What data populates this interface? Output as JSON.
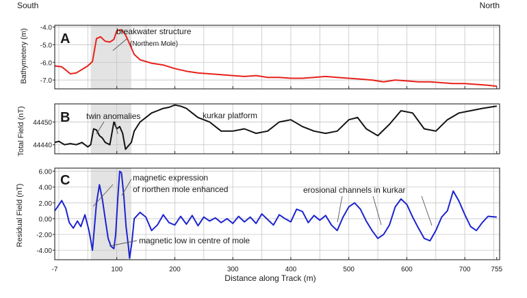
{
  "figure": {
    "label_south": "South",
    "label_north": "North",
    "x_axis_title": "Distance along Track (m)",
    "x_ticks": [
      -7,
      100,
      200,
      300,
      400,
      500,
      600,
      700,
      755
    ],
    "shaded_region_x": [
      55,
      125
    ]
  },
  "chart_data": [
    {
      "type": "line",
      "panel": "A",
      "ylabel": "Bathymetery (m)",
      "ylim": [
        -7.5,
        -3.9
      ],
      "y_ticks": [
        "-4.0",
        "-5.0",
        "-6.0",
        "-7.0"
      ],
      "y_tick_values": [
        -4,
        -5,
        -6,
        -7
      ],
      "color": "#e8201a",
      "grid": true,
      "x": [
        -7,
        5,
        20,
        30,
        40,
        50,
        58,
        65,
        72,
        80,
        88,
        95,
        100,
        108,
        115,
        122,
        130,
        140,
        160,
        180,
        200,
        220,
        240,
        260,
        280,
        300,
        320,
        340,
        360,
        380,
        400,
        420,
        440,
        460,
        480,
        500,
        520,
        540,
        560,
        580,
        600,
        620,
        640,
        660,
        680,
        700,
        720,
        740,
        755
      ],
      "y": [
        -6.2,
        -6.25,
        -6.65,
        -6.6,
        -6.4,
        -6.2,
        -5.95,
        -4.65,
        -4.55,
        -4.8,
        -4.85,
        -4.7,
        -4.2,
        -4.15,
        -4.45,
        -4.95,
        -5.55,
        -5.85,
        -6.05,
        -6.15,
        -6.35,
        -6.5,
        -6.6,
        -6.65,
        -6.7,
        -6.75,
        -6.8,
        -6.75,
        -6.85,
        -6.85,
        -6.9,
        -6.9,
        -6.85,
        -6.8,
        -6.85,
        -6.9,
        -6.95,
        -7.0,
        -7.1,
        -7.0,
        -7.05,
        -7.1,
        -7.1,
        -7.15,
        -7.2,
        -7.2,
        -7.25,
        -7.3,
        -7.35
      ],
      "annotations": [
        "breakwater structure",
        "(Northern Mole)"
      ]
    },
    {
      "type": "line",
      "panel": "B",
      "ylabel": "Total Field (nT)",
      "ylim": [
        44436,
        44458
      ],
      "y_ticks": [
        "44450",
        "44440"
      ],
      "y_tick_values": [
        44450,
        44440
      ],
      "color": "#111111",
      "grid": true,
      "x": [
        -7,
        0,
        10,
        20,
        30,
        40,
        50,
        55,
        60,
        65,
        70,
        75,
        80,
        88,
        95,
        100,
        105,
        110,
        115,
        120,
        125,
        130,
        140,
        150,
        160,
        170,
        180,
        190,
        200,
        210,
        220,
        230,
        240,
        250,
        260,
        270,
        280,
        300,
        320,
        340,
        360,
        380,
        400,
        420,
        440,
        460,
        480,
        500,
        515,
        530,
        550,
        570,
        590,
        610,
        630,
        650,
        670,
        690,
        710,
        730,
        755
      ],
      "y": [
        44441,
        44441.5,
        44440,
        44440.5,
        44440,
        44441,
        44439,
        44440,
        44447,
        44446.5,
        44444,
        44443,
        44441,
        44440,
        44450,
        44447,
        44448,
        44445,
        44438,
        44439.5,
        44441,
        44446,
        44450,
        44452,
        44454,
        44455,
        44456,
        44456.5,
        44457.5,
        44457,
        44456,
        44454,
        44452,
        44451,
        44450,
        44448,
        44446,
        44446,
        44447,
        44445,
        44446,
        44450,
        44451,
        44448,
        44446,
        44445,
        44446,
        44451,
        44452,
        44447,
        44444,
        44449,
        44455,
        44454,
        44447,
        44446,
        44451,
        44454,
        44455,
        44456,
        44457
      ],
      "annotations": [
        "twin anomalies",
        "kurkar platform"
      ]
    },
    {
      "type": "line",
      "panel": "C",
      "ylabel": "Residual  Field (nT)",
      "ylim": [
        -5.2,
        6.4
      ],
      "y_ticks": [
        "6.00",
        "4.00",
        "2.00",
        "0.00",
        "-2.00",
        "-4.00"
      ],
      "y_tick_values": [
        6,
        4,
        2,
        0,
        -2,
        -4
      ],
      "color": "#1c22d0",
      "grid": true,
      "x": [
        -7,
        -2,
        5,
        12,
        18,
        25,
        32,
        38,
        45,
        52,
        58,
        65,
        70,
        75,
        80,
        85,
        90,
        95,
        98,
        102,
        105,
        108,
        112,
        116,
        120,
        122,
        126,
        130,
        140,
        150,
        160,
        170,
        180,
        190,
        200,
        210,
        220,
        230,
        240,
        250,
        260,
        270,
        280,
        290,
        300,
        310,
        320,
        330,
        340,
        350,
        360,
        370,
        380,
        390,
        400,
        410,
        420,
        430,
        440,
        450,
        460,
        470,
        480,
        490,
        500,
        510,
        520,
        530,
        540,
        550,
        560,
        570,
        580,
        590,
        600,
        610,
        620,
        630,
        640,
        650,
        660,
        670,
        680,
        690,
        700,
        710,
        720,
        730,
        740,
        755
      ],
      "y": [
        1.0,
        1.5,
        2.3,
        1.3,
        -0.5,
        -1.2,
        -0.3,
        -1.0,
        0.5,
        -1.5,
        -4.0,
        2.0,
        4.3,
        2.5,
        0.0,
        -2.5,
        -3.5,
        -3.8,
        -2.0,
        3.0,
        6.0,
        5.8,
        3.0,
        -1.0,
        -3.5,
        -5.0,
        -3.0,
        0.0,
        0.8,
        0.2,
        -1.5,
        -0.8,
        0.5,
        -0.5,
        -0.8,
        0.3,
        -0.7,
        0.4,
        -0.9,
        0.2,
        -0.3,
        0.1,
        -0.5,
        0.0,
        -0.6,
        0.3,
        -0.4,
        0.2,
        -0.6,
        0.6,
        -0.1,
        -0.8,
        0.5,
        0.0,
        -0.4,
        1.2,
        0.9,
        -0.5,
        0.4,
        -0.2,
        0.4,
        -0.8,
        -1.5,
        0.2,
        1.5,
        2.0,
        1.2,
        -0.3,
        -1.5,
        -2.5,
        -2.0,
        -0.8,
        1.5,
        2.5,
        1.8,
        0.2,
        -1.2,
        -2.5,
        -2.8,
        -1.5,
        0.2,
        1.0,
        3.5,
        2.2,
        0.5,
        -1.0,
        -1.5,
        -0.5,
        0.3,
        0.2
      ],
      "annotations": [
        "magnetic expression",
        "of northen mole enhanced",
        "erosional channels in kurkar",
        "magnetic low in centre of mole"
      ]
    }
  ]
}
